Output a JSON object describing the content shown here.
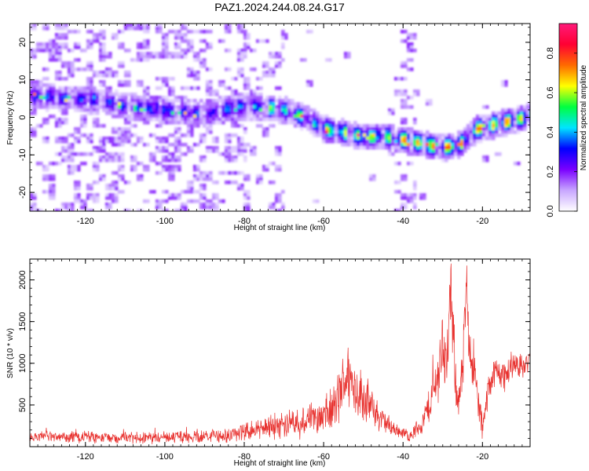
{
  "title": "PAZ1.2024.244.08.24.G17",
  "colors": {
    "snr_line": "#e8322f",
    "colormap": [
      "#ffffff",
      "#c8a6ff",
      "#7a00ff",
      "#0000ff",
      "#00e5ff",
      "#00ff40",
      "#ffff00",
      "#ff6a00",
      "#ff0033",
      "#ff1a7a"
    ]
  },
  "chart_data": [
    {
      "type": "heatmap",
      "xlabel": "Height of straight line (km)",
      "ylabel": "Frequency (Hz)",
      "xlim": [
        -134,
        -8
      ],
      "ylim": [
        -25,
        25
      ],
      "x_ticks": [
        -120,
        -100,
        -80,
        -60,
        -40,
        -20
      ],
      "x_tick_labels": [
        "-120",
        "-100",
        "-80",
        "-60",
        "-40",
        "-20"
      ],
      "y_ticks": [
        -20,
        -10,
        0,
        10,
        20
      ],
      "y_tick_labels": [
        "-20",
        "-10",
        "0",
        "10",
        "20"
      ],
      "ridge": {
        "x": [
          -133,
          -125,
          -118,
          -110,
          -100,
          -90,
          -82,
          -76,
          -70,
          -65,
          -60,
          -55,
          -50,
          -45,
          -40,
          -35,
          -30,
          -26,
          -22,
          -18,
          -14,
          -10,
          -8
        ],
        "frequency": [
          6,
          5,
          5,
          3,
          2,
          1,
          3,
          3,
          2,
          0,
          -3,
          -4,
          -5,
          -5,
          -6,
          -7,
          -8,
          -7,
          -3,
          -2,
          -1,
          0,
          1
        ]
      },
      "colorbar": {
        "label": "Normalized spectral amplitude",
        "range": [
          0,
          0.95
        ],
        "ticks": [
          0.0,
          0.2,
          0.4,
          0.6,
          0.8
        ],
        "tick_labels": [
          "0.0",
          "0.2",
          "0.4",
          "0.6",
          "0.8"
        ]
      }
    },
    {
      "type": "line",
      "xlabel": "Height of straight line (km)",
      "ylabel": "SNR (10 * v/v)",
      "xlim": [
        -134,
        -8
      ],
      "ylim": [
        0,
        2250
      ],
      "x_ticks": [
        -120,
        -100,
        -80,
        -60,
        -40,
        -20
      ],
      "x_tick_labels": [
        "-120",
        "-100",
        "-80",
        "-60",
        "-40",
        "-20"
      ],
      "y_ticks": [
        500,
        1000,
        1500,
        2000
      ],
      "y_tick_labels": [
        "500",
        "1000",
        "1500",
        "2000"
      ],
      "envelope": {
        "x": [
          -134,
          -120,
          -100,
          -85,
          -78,
          -72,
          -66,
          -62,
          -58,
          -56,
          -54,
          -52,
          -50,
          -46,
          -42,
          -38,
          -35,
          -33,
          -31,
          -30,
          -29,
          -28,
          -27,
          -26,
          -25,
          -24,
          -23,
          -22,
          -21,
          -20,
          -19,
          -18,
          -16,
          -14,
          -12,
          -10,
          -8
        ],
        "mean": [
          120,
          110,
          110,
          130,
          200,
          260,
          320,
          330,
          420,
          600,
          900,
          700,
          600,
          350,
          200,
          130,
          300,
          550,
          900,
          1300,
          900,
          1850,
          1000,
          500,
          900,
          1900,
          1100,
          900,
          500,
          200,
          500,
          800,
          900,
          850,
          1000,
          950,
          1050
        ],
        "amplitude": [
          50,
          60,
          60,
          70,
          100,
          130,
          180,
          180,
          220,
          300,
          340,
          300,
          250,
          150,
          70,
          60,
          120,
          200,
          300,
          400,
          300,
          400,
          300,
          250,
          300,
          350,
          300,
          300,
          250,
          120,
          200,
          200,
          180,
          150,
          150,
          120,
          100
        ]
      }
    }
  ]
}
